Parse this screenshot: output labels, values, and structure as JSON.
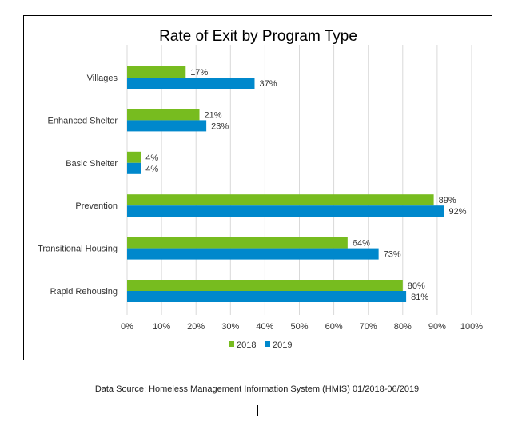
{
  "chart_data": {
    "type": "bar",
    "orientation": "horizontal",
    "title": "Rate of Exit by Program Type",
    "xlabel": "",
    "ylabel": "",
    "categories": [
      "Villages",
      "Enhanced Shelter",
      "Basic Shelter",
      "Prevention",
      "Transitional Housing",
      "Rapid Rehousing"
    ],
    "series": [
      {
        "name": "2018",
        "color": "#77BC1F",
        "values": [
          17,
          21,
          4,
          89,
          64,
          80
        ],
        "labels": [
          "17%",
          "21%",
          "4%",
          "89%",
          "64%",
          "80%"
        ]
      },
      {
        "name": "2019",
        "color": "#0088CC",
        "values": [
          37,
          23,
          4,
          92,
          73,
          81
        ],
        "labels": [
          "37%",
          "23%",
          "4%",
          "92%",
          "73%",
          "81%"
        ]
      }
    ],
    "xlim": [
      0,
      100
    ],
    "xticks": [
      "0%",
      "10%",
      "20%",
      "30%",
      "40%",
      "50%",
      "60%",
      "70%",
      "80%",
      "90%",
      "100%"
    ],
    "grid": true,
    "legend": "bottom"
  },
  "footer": {
    "source": "Data Source: Homeless Management Information System (HMIS) 01/2018-06/2019"
  }
}
